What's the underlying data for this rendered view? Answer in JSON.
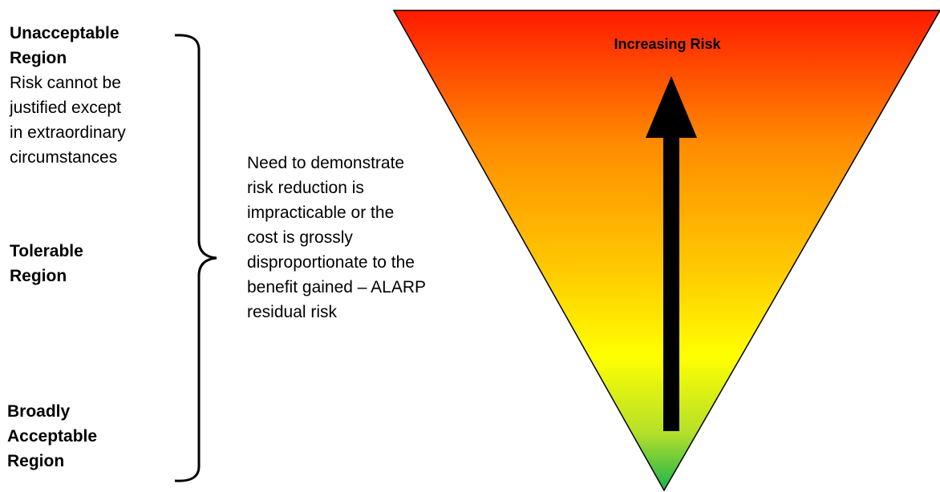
{
  "regions": {
    "unacceptable": {
      "heading_line1": "Unacceptable",
      "heading_line2": "Region",
      "description_lines": [
        "Risk cannot be",
        "justified except",
        "in extraordinary",
        "circumstances"
      ]
    },
    "tolerable": {
      "heading_line1": "Tolerable",
      "heading_line2": "Region"
    },
    "broadly_acceptable": {
      "heading_line1": "Broadly",
      "heading_line2": "Acceptable",
      "heading_line3": "Region"
    }
  },
  "alarp_note": {
    "lines": [
      "Need to demonstrate",
      "risk reduction is",
      "impracticable or the",
      "cost is grossly",
      "disproportionate to the",
      "benefit gained – ALARP",
      "residual risk"
    ]
  },
  "triangle": {
    "label": "Increasing Risk",
    "gradient_colors": [
      "#ff1a00",
      "#ff8c00",
      "#ffcc00",
      "#ffff00",
      "#b5e02a",
      "#1ab34d"
    ]
  }
}
